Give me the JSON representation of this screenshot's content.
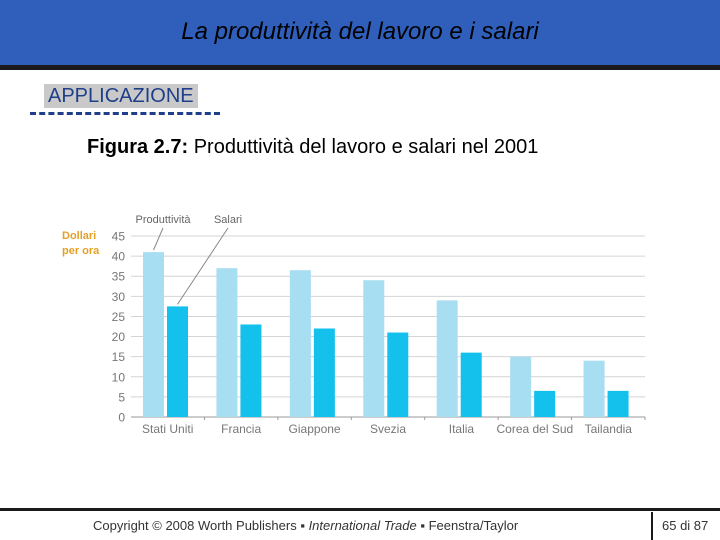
{
  "slide": {
    "title": "La produttività del lavoro e i salari",
    "section": "APPLICAZIONE",
    "caption_bold": "Figura 2.7:",
    "caption_text": " Produttività del lavoro e salari nel 2001",
    "footer_copyright": "Copyright © 2008 Worth Publishers",
    "footer_sep1": " ▪ ",
    "footer_book": "International Trade",
    "footer_sep2": " ▪ ",
    "footer_authors": "Feenstra/Taylor",
    "page_number": "65 di 87"
  },
  "chart_data": {
    "type": "bar",
    "ylabel_line1": "Dollari",
    "ylabel_line2": "per ora",
    "ylim": [
      0,
      45
    ],
    "yticks": [
      0,
      5,
      10,
      15,
      20,
      25,
      30,
      35,
      40,
      45
    ],
    "categories": [
      "Stati Uniti",
      "Francia",
      "Giappone",
      "Svezia",
      "Italia",
      "Corea del Sud",
      "Tailandia"
    ],
    "series": [
      {
        "name": "Produttività",
        "color": "#a8def2",
        "values": [
          41,
          37,
          36.5,
          34,
          29,
          15,
          14
        ]
      },
      {
        "name": "Salari",
        "color": "#13c1ec",
        "values": [
          27.5,
          23,
          22,
          21,
          16,
          6.5,
          6.5
        ]
      }
    ],
    "grid": true,
    "legend": "top-left, callout labels"
  }
}
